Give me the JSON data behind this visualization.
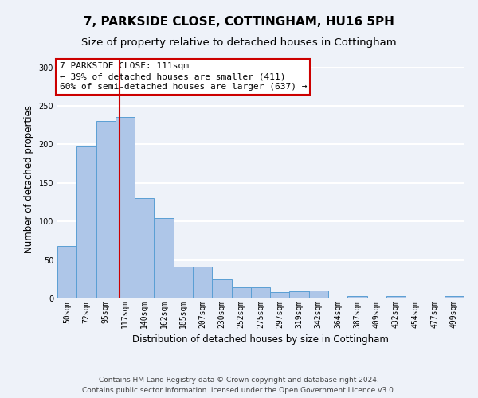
{
  "title": "7, PARKSIDE CLOSE, COTTINGHAM, HU16 5PH",
  "subtitle": "Size of property relative to detached houses in Cottingham",
  "xlabel": "Distribution of detached houses by size in Cottingham",
  "ylabel": "Number of detached properties",
  "categories": [
    "50sqm",
    "72sqm",
    "95sqm",
    "117sqm",
    "140sqm",
    "162sqm",
    "185sqm",
    "207sqm",
    "230sqm",
    "252sqm",
    "275sqm",
    "297sqm",
    "319sqm",
    "342sqm",
    "364sqm",
    "387sqm",
    "409sqm",
    "432sqm",
    "454sqm",
    "477sqm",
    "499sqm"
  ],
  "values": [
    68,
    197,
    230,
    236,
    130,
    104,
    41,
    41,
    25,
    14,
    14,
    8,
    9,
    10,
    0,
    3,
    0,
    3,
    0,
    0,
    3
  ],
  "bar_color": "#aec6e8",
  "bar_edge_color": "#5a9fd4",
  "annotation_box_text_line1": "7 PARKSIDE CLOSE: 111sqm",
  "annotation_box_text_line2": "← 39% of detached houses are smaller (411)",
  "annotation_box_text_line3": "60% of semi-detached houses are larger (637) →",
  "annotation_box_color": "#ffffff",
  "annotation_box_edge_color": "#cc0000",
  "vline_color": "#cc0000",
  "vline_x_index": 2.73,
  "ylim": [
    0,
    310
  ],
  "yticks": [
    0,
    50,
    100,
    150,
    200,
    250,
    300
  ],
  "footer_line1": "Contains HM Land Registry data © Crown copyright and database right 2024.",
  "footer_line2": "Contains public sector information licensed under the Open Government Licence v3.0.",
  "bg_color": "#eef2f9",
  "grid_color": "#ffffff",
  "title_fontsize": 11,
  "subtitle_fontsize": 9.5,
  "xlabel_fontsize": 8.5,
  "ylabel_fontsize": 8.5,
  "tick_fontsize": 7,
  "footer_fontsize": 6.5,
  "annotation_fontsize": 8
}
